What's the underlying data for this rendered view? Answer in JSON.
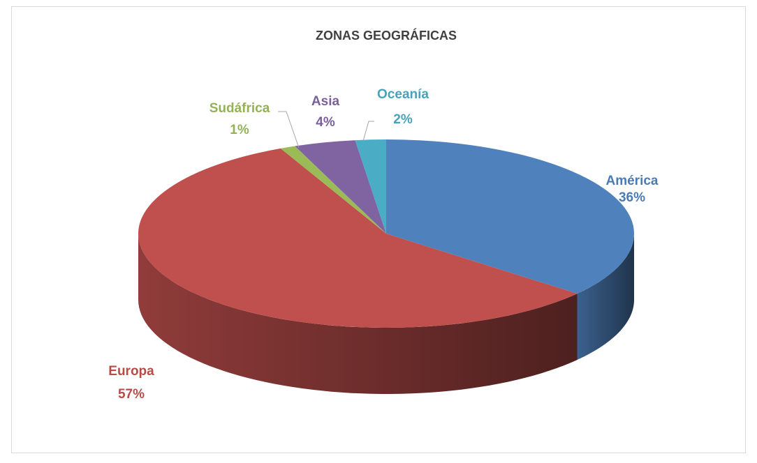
{
  "chart_data": {
    "type": "pie",
    "title": "ZONAS GEOGRÁFICAS",
    "categories": [
      "América",
      "Europa",
      "Sudáfrica",
      "Asia",
      "Oceanía"
    ],
    "values": [
      36,
      57,
      1,
      4,
      2
    ],
    "value_labels": [
      "36%",
      "57%",
      "1%",
      "4%",
      "2%"
    ],
    "colors": [
      "#4f81bd",
      "#c0504d",
      "#9bbb59",
      "#8064a2",
      "#4bacc6"
    ]
  }
}
